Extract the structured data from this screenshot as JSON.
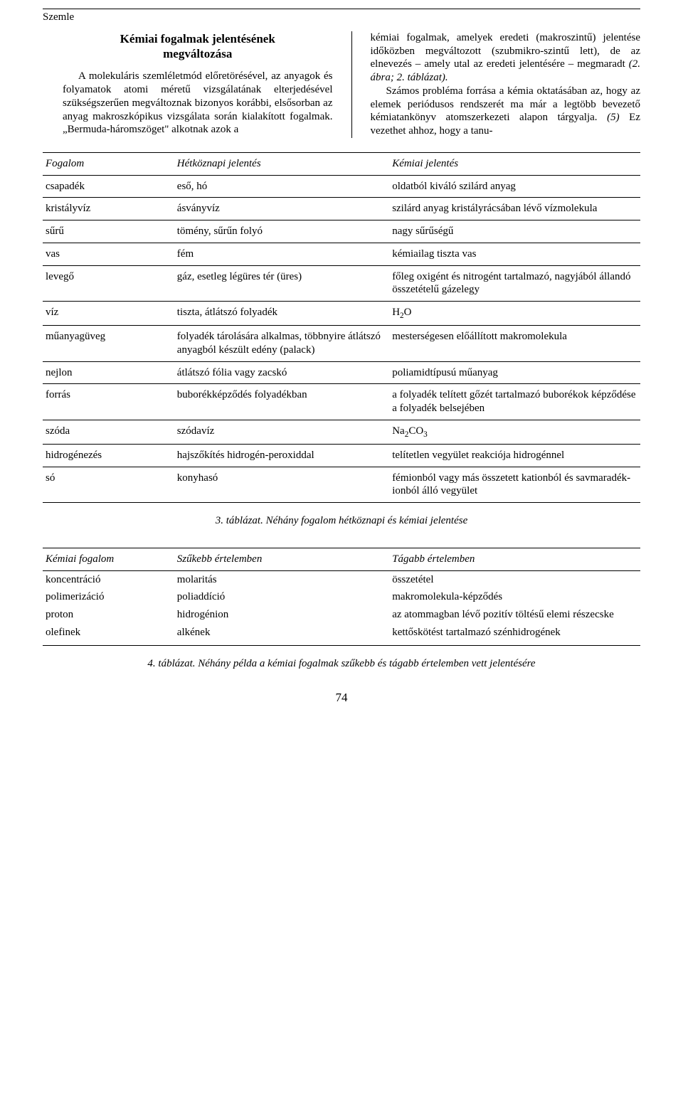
{
  "header": {
    "label": "Szemle"
  },
  "article": {
    "title_line1": "Kémiai fogalmak jelentésének",
    "title_line2": "megváltozása",
    "left_para": "A molekuláris szemléletmód előretörésével, az anyagok és folyamatok atomi méretű vizsgálatának elterjedésével szükségszerűen megváltoznak bizonyos korábbi, elsősorban az anyag makroszkópikus vizsgálata során kialakított fogalmak. „Bermuda-háromszöget\" alkotnak azok a",
    "right_para1": "kémiai fogalmak, amelyek eredeti (makroszintű) jelentése időközben megváltozott (szubmikro-szintű lett), de az elnevezés – amely utal az eredeti jelentésére – megmaradt ",
    "right_para1_ital": "(2. ábra; 2. táblázat).",
    "right_para2": "Számos probléma forrása a kémia oktatásában az, hogy az elemek periódusos rendszerét ma már a legtöbb bevezető kémiatankönyv atomszerkezeti alapon tárgyalja. ",
    "right_para2_ital": "(5)",
    "right_para2_cont": " Ez vezethet ahhoz, hogy a tanu-"
  },
  "table1": {
    "headers": [
      "Fogalom",
      "Hétköznapi jelentés",
      "Kémiai jelentés"
    ],
    "rows": [
      [
        "csapadék",
        "eső, hó",
        "oldatból kiváló szilárd anyag"
      ],
      [
        "kristályvíz",
        "ásványvíz",
        "szilárd anyag kristályrácsában lévő vízmolekula"
      ],
      [
        "sűrű",
        "tömény, sűrűn folyó",
        "nagy sűrűségű"
      ],
      [
        "vas",
        "fém",
        "kémiailag tiszta vas"
      ],
      [
        "levegő",
        "gáz, esetleg légüres tér (üres)",
        "főleg oxigént és nitrogént tartalmazó, nagyjából állandó összetételű gázelegy"
      ],
      [
        "víz",
        "tiszta, átlátszó folyadék",
        "H₂O"
      ],
      [
        "műanyagüveg",
        "folyadék tárolására alkalmas, többnyire átlátszó anyagból készült edény (palack)",
        "mesterségesen előállított makromolekula"
      ],
      [
        "nejlon",
        "átlátszó fólia vagy zacskó",
        "poliamidtípusú műanyag"
      ],
      [
        "forrás",
        "buborékképződés folyadékban",
        "a folyadék telített gőzét tartalmazó buborékok képződése a folyadék belsejében"
      ],
      [
        "szóda",
        "szódavíz",
        "Na₂CO₃"
      ],
      [
        "hidrogénezés",
        "hajszőkítés hidrogén-peroxiddal",
        "telítetlen vegyület reakciója hidrogénnel"
      ],
      [
        "só",
        "konyhasó",
        "fémionból vagy más összetett kationból és savmaradék-ionból álló vegyület"
      ]
    ],
    "caption": "3. táblázat. Néhány fogalom hétköznapi és kémiai jelentése"
  },
  "table2": {
    "headers": [
      "Kémiai fogalom",
      "Szűkebb értelemben",
      "Tágabb értelemben"
    ],
    "rows": [
      [
        "koncentráció",
        "molaritás",
        "összetétel"
      ],
      [
        "polimerizáció",
        "poliaddíció",
        "makromolekula-képződés"
      ],
      [
        "proton",
        "hidrogénion",
        "az atommagban lévő pozitív töltésű elemi részecske"
      ],
      [
        "olefinek",
        "alkének",
        "kettőskötést tartalmazó szénhidrogének"
      ]
    ],
    "caption": "4. táblázat. Néhány példa a kémiai fogalmak szűkebb és tágabb értelemben vett jelentésére"
  },
  "page_number": "74"
}
